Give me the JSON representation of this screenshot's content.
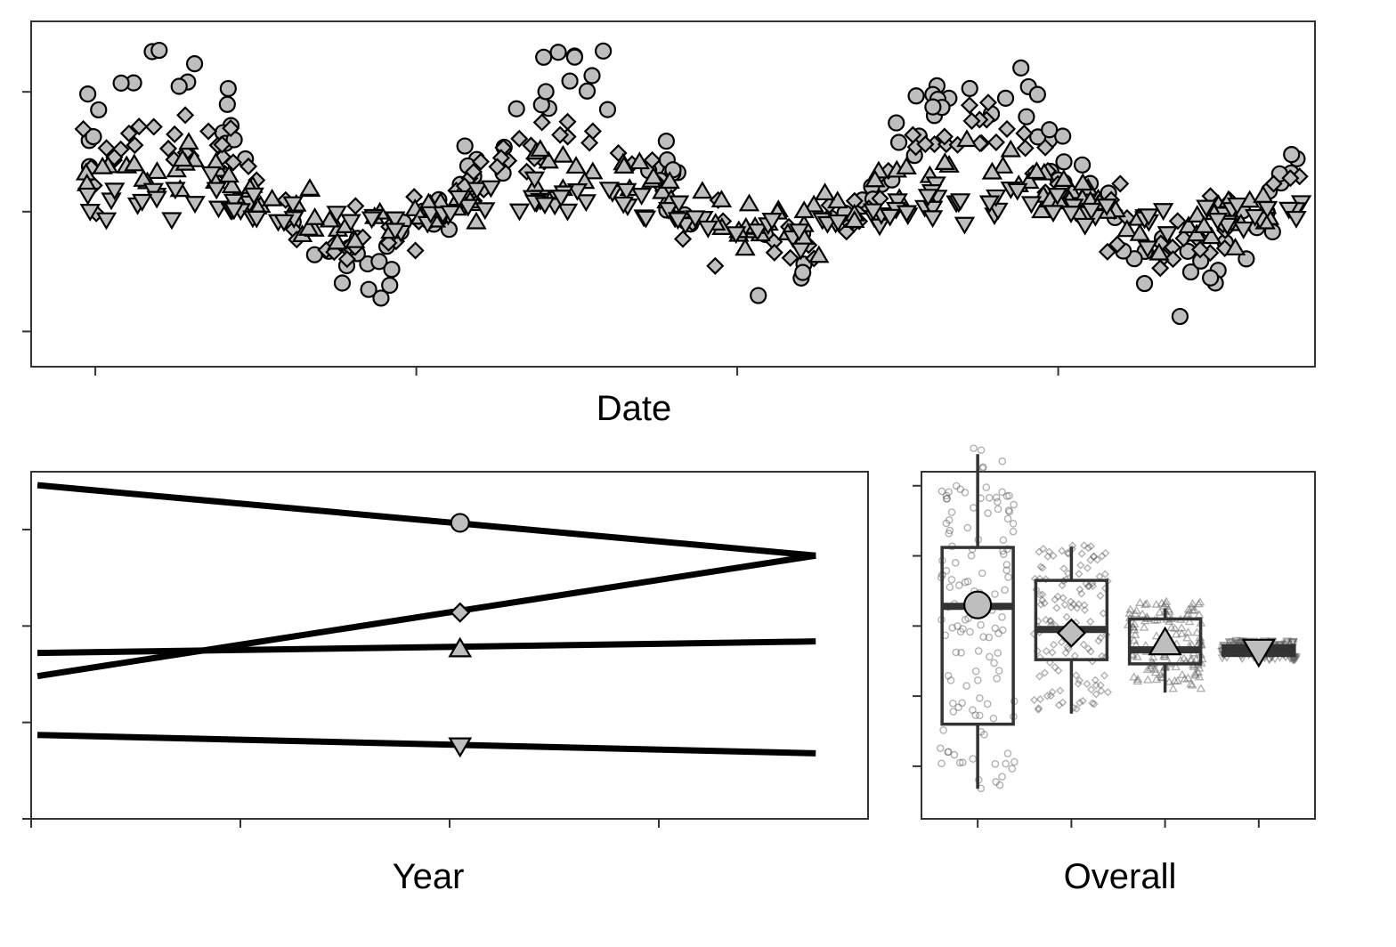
{
  "colors": {
    "marker_fill": "#bebebe",
    "marker_stroke": "#000000",
    "frame": "#333333",
    "line": "#000000"
  },
  "chart_data": [
    {
      "id": "date-panel",
      "type": "scatter",
      "title": "",
      "xlabel": "Date",
      "ylabel": "",
      "xlim": [
        0,
        2000
      ],
      "ylim": [
        -0.25,
        2.2
      ],
      "x_tick_values": [
        100,
        600,
        1100,
        1600
      ],
      "y_tick_values": [
        0,
        0.85,
        1.7
      ],
      "tick_labels_shown": false,
      "grid": false,
      "legend": "none",
      "series": [
        {
          "marker": "circle",
          "x_start": 80,
          "x_end": 1980,
          "count": 150,
          "base": 1.1,
          "amplitude": 0.68,
          "periods": 3
        },
        {
          "marker": "diamond",
          "x_start": 80,
          "x_end": 1980,
          "count": 150,
          "base": 1.0,
          "amplitude": 0.4,
          "periods": 3
        },
        {
          "marker": "triangle-up",
          "x_start": 80,
          "x_end": 1980,
          "count": 150,
          "base": 0.95,
          "amplitude": 0.22,
          "periods": 3
        },
        {
          "marker": "triangle-down",
          "x_start": 80,
          "x_end": 1980,
          "count": 150,
          "base": 0.85,
          "amplitude": 0.08,
          "periods": 3
        }
      ]
    },
    {
      "id": "year-panel",
      "type": "line",
      "title": "",
      "xlabel": "Year",
      "ylabel": "",
      "xlim": [
        0,
        4
      ],
      "ylim": [
        0,
        3.6
      ],
      "x_tick_values": [
        0,
        1,
        2,
        3
      ],
      "y_tick_values": [
        0,
        1,
        2,
        3
      ],
      "tick_labels_shown": false,
      "grid": false,
      "legend": "none",
      "series": [
        {
          "marker": "circle",
          "x": [
            0.03,
            3.75
          ],
          "y": [
            3.46,
            2.73
          ],
          "marker_x": 2.05,
          "marker_y": 3.07
        },
        {
          "marker": "diamond",
          "x": [
            0.03,
            3.75
          ],
          "y": [
            1.48,
            2.73
          ],
          "marker_x": 2.05,
          "marker_y": 2.14
        },
        {
          "marker": "triangle-up",
          "x": [
            0.03,
            3.75
          ],
          "y": [
            1.72,
            1.84
          ],
          "marker_x": 2.05,
          "marker_y": 1.76
        },
        {
          "marker": "triangle-down",
          "x": [
            0.03,
            3.75
          ],
          "y": [
            0.87,
            0.68
          ],
          "marker_x": 2.05,
          "marker_y": 0.76
        }
      ]
    },
    {
      "id": "overall-panel",
      "type": "box",
      "title": "",
      "xlabel": "Overall",
      "ylabel": "",
      "xlim": [
        0.4,
        4.6
      ],
      "ylim": [
        -0.35,
        4.6
      ],
      "x_tick_values": [
        1,
        2,
        3,
        4
      ],
      "y_tick_values": [
        0.4,
        1.4,
        2.4,
        3.4,
        4.4
      ],
      "tick_labels_shown": false,
      "grid": false,
      "legend": "none",
      "boxes": [
        {
          "marker": "circle",
          "x": 1,
          "whisker_low": 0.08,
          "q1": 1.0,
          "median": 2.68,
          "q3": 3.52,
          "whisker_high": 4.85,
          "mean": 2.7
        },
        {
          "marker": "diamond",
          "x": 2,
          "whisker_low": 1.15,
          "q1": 1.92,
          "median": 2.35,
          "q3": 3.05,
          "whisker_high": 3.53,
          "mean": 2.3
        },
        {
          "marker": "triangle-up",
          "x": 3,
          "whisker_low": 1.45,
          "q1": 1.86,
          "median": 2.06,
          "q3": 2.5,
          "whisker_high": 2.65,
          "mean": 2.15
        },
        {
          "marker": "triangle-down",
          "x": 4,
          "whisker_low": 1.94,
          "q1": 1.98,
          "median": 2.05,
          "q3": 2.12,
          "whisker_high": 2.18,
          "mean": 2.05
        }
      ],
      "jitter": [
        {
          "marker": "circle",
          "count": 130,
          "low": 0.0,
          "high": 4.95
        },
        {
          "marker": "diamond",
          "count": 130,
          "low": 1.2,
          "high": 3.55
        },
        {
          "marker": "triangle-up",
          "count": 130,
          "low": 1.5,
          "high": 2.75
        },
        {
          "marker": "triangle-down",
          "count": 130,
          "low": 1.92,
          "high": 2.2
        }
      ]
    }
  ]
}
